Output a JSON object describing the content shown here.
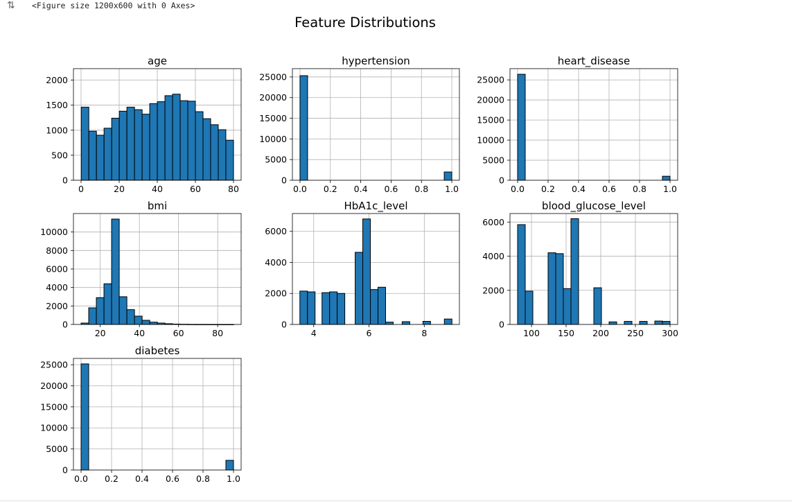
{
  "output": {
    "figure_text": "<Figure size 1200x600 with 0 Axes>",
    "collapse_icon": "output-collapse-icon"
  },
  "figure": {
    "title": "Feature Distributions"
  },
  "colors": {
    "bar_fill": "#1f77b4",
    "bar_edge": "#000000",
    "grid": "#b0b0b0",
    "text": "#000000"
  },
  "chart_data": [
    {
      "type": "bar",
      "title": "age",
      "xlim": [
        -4,
        84
      ],
      "ylim": [
        0,
        2230
      ],
      "xticks": [
        0,
        20,
        40,
        60,
        80
      ],
      "xtick_labels": [
        "0",
        "20",
        "40",
        "60",
        "80"
      ],
      "yticks": [
        0,
        500,
        1000,
        1500,
        2000
      ],
      "ytick_labels": [
        "0",
        "500",
        "1000",
        "1500",
        "2000"
      ],
      "grid": true,
      "bins": [
        {
          "x0": 0.08,
          "x1": 4.07,
          "y": 1460
        },
        {
          "x0": 4.07,
          "x1": 8.07,
          "y": 980
        },
        {
          "x0": 8.07,
          "x1": 12.06,
          "y": 900
        },
        {
          "x0": 12.06,
          "x1": 16.06,
          "y": 1040
        },
        {
          "x0": 16.06,
          "x1": 20.05,
          "y": 1240
        },
        {
          "x0": 20.05,
          "x1": 24.05,
          "y": 1380
        },
        {
          "x0": 24.05,
          "x1": 28.04,
          "y": 1460
        },
        {
          "x0": 28.04,
          "x1": 32.04,
          "y": 1410
        },
        {
          "x0": 32.04,
          "x1": 36.03,
          "y": 1320
        },
        {
          "x0": 36.03,
          "x1": 40.03,
          "y": 1530
        },
        {
          "x0": 40.03,
          "x1": 44.02,
          "y": 1570
        },
        {
          "x0": 44.02,
          "x1": 48.02,
          "y": 1690
        },
        {
          "x0": 48.02,
          "x1": 52.01,
          "y": 1720
        },
        {
          "x0": 52.01,
          "x1": 56.01,
          "y": 1590
        },
        {
          "x0": 56.01,
          "x1": 60.0,
          "y": 1580
        },
        {
          "x0": 60.0,
          "x1": 64.0,
          "y": 1370
        },
        {
          "x0": 64.0,
          "x1": 67.99,
          "y": 1230
        },
        {
          "x0": 67.99,
          "x1": 71.99,
          "y": 1110
        },
        {
          "x0": 71.99,
          "x1": 75.98,
          "y": 1010
        },
        {
          "x0": 75.98,
          "x1": 80.0,
          "y": 800
        },
        {
          "x0": 80.0,
          "x1": 84.0,
          "y": 0
        }
      ]
    },
    {
      "type": "bar",
      "title": "hypertension",
      "xlim": [
        -0.05,
        1.05
      ],
      "ylim": [
        0,
        27000
      ],
      "xticks": [
        0,
        0.2,
        0.4,
        0.6,
        0.8,
        1.0
      ],
      "xtick_labels": [
        "0.0",
        "0.2",
        "0.4",
        "0.6",
        "0.8",
        "1.0"
      ],
      "yticks": [
        0,
        5000,
        10000,
        15000,
        20000,
        25000
      ],
      "ytick_labels": [
        "0",
        "5000",
        "10000",
        "15000",
        "20000",
        "25000"
      ],
      "grid": true,
      "bins": [
        {
          "x0": 0.0,
          "x1": 0.05,
          "y": 25300
        },
        {
          "x0": 0.95,
          "x1": 1.0,
          "y": 2000
        }
      ]
    },
    {
      "type": "bar",
      "title": "heart_disease",
      "xlim": [
        -0.05,
        1.05
      ],
      "ylim": [
        0,
        27800
      ],
      "xticks": [
        0,
        0.2,
        0.4,
        0.6,
        0.8,
        1.0
      ],
      "xtick_labels": [
        "0.0",
        "0.2",
        "0.4",
        "0.6",
        "0.8",
        "1.0"
      ],
      "yticks": [
        0,
        5000,
        10000,
        15000,
        20000,
        25000
      ],
      "ytick_labels": [
        "0",
        "5000",
        "10000",
        "15000",
        "20000",
        "25000"
      ],
      "grid": true,
      "bins": [
        {
          "x0": 0.0,
          "x1": 0.05,
          "y": 26400
        },
        {
          "x0": 0.95,
          "x1": 1.0,
          "y": 1000
        }
      ]
    },
    {
      "type": "bar",
      "title": "bmi",
      "xlim": [
        6.3,
        92.0
      ],
      "ylim": [
        0,
        12000
      ],
      "xticks": [
        20,
        40,
        60,
        80
      ],
      "xtick_labels": [
        "20",
        "40",
        "60",
        "80"
      ],
      "yticks": [
        0,
        2000,
        4000,
        6000,
        8000,
        10000
      ],
      "ytick_labels": [
        "0",
        "2000",
        "4000",
        "6000",
        "8000",
        "10000"
      ],
      "grid": true,
      "bins": [
        {
          "x0": 10.2,
          "x1": 14.1,
          "y": 150
        },
        {
          "x0": 14.1,
          "x1": 18.0,
          "y": 1800
        },
        {
          "x0": 18.0,
          "x1": 21.9,
          "y": 2900
        },
        {
          "x0": 21.9,
          "x1": 25.8,
          "y": 4400
        },
        {
          "x0": 25.8,
          "x1": 29.7,
          "y": 11400
        },
        {
          "x0": 29.7,
          "x1": 33.6,
          "y": 3000
        },
        {
          "x0": 33.6,
          "x1": 37.5,
          "y": 1600
        },
        {
          "x0": 37.5,
          "x1": 41.4,
          "y": 900
        },
        {
          "x0": 41.4,
          "x1": 45.3,
          "y": 450
        },
        {
          "x0": 45.3,
          "x1": 49.2,
          "y": 250
        },
        {
          "x0": 49.2,
          "x1": 53.1,
          "y": 150
        },
        {
          "x0": 53.1,
          "x1": 57.0,
          "y": 80
        },
        {
          "x0": 57.0,
          "x1": 60.9,
          "y": 40
        },
        {
          "x0": 60.9,
          "x1": 64.8,
          "y": 20
        },
        {
          "x0": 64.8,
          "x1": 68.7,
          "y": 10
        },
        {
          "x0": 68.7,
          "x1": 72.6,
          "y": 5
        },
        {
          "x0": 72.6,
          "x1": 76.5,
          "y": 5
        },
        {
          "x0": 76.5,
          "x1": 80.4,
          "y": 3
        },
        {
          "x0": 80.4,
          "x1": 84.3,
          "y": 2
        },
        {
          "x0": 84.3,
          "x1": 88.2,
          "y": 2
        }
      ]
    },
    {
      "type": "bar",
      "title": "HbA1c_level",
      "xlim": [
        3.23,
        9.27
      ],
      "ylim": [
        0,
        7150
      ],
      "xticks": [
        4,
        6,
        8
      ],
      "xtick_labels": [
        "4",
        "6",
        "8"
      ],
      "yticks": [
        0,
        2000,
        4000,
        6000
      ],
      "ytick_labels": [
        "0",
        "2000",
        "4000",
        "6000"
      ],
      "grid": true,
      "bins": [
        {
          "x0": 3.5,
          "x1": 3.775,
          "y": 2150
        },
        {
          "x0": 3.775,
          "x1": 4.05,
          "y": 2100
        },
        {
          "x0": 4.3,
          "x1": 4.575,
          "y": 2050
        },
        {
          "x0": 4.575,
          "x1": 4.85,
          "y": 2100
        },
        {
          "x0": 4.85,
          "x1": 5.125,
          "y": 2000
        },
        {
          "x0": 5.5,
          "x1": 5.775,
          "y": 4650
        },
        {
          "x0": 5.775,
          "x1": 6.05,
          "y": 6800
        },
        {
          "x0": 6.05,
          "x1": 6.325,
          "y": 2250
        },
        {
          "x0": 6.325,
          "x1": 6.6,
          "y": 2400
        },
        {
          "x0": 6.6,
          "x1": 6.875,
          "y": 150
        },
        {
          "x0": 7.2,
          "x1": 7.475,
          "y": 180
        },
        {
          "x0": 7.95,
          "x1": 8.225,
          "y": 200
        },
        {
          "x0": 8.725,
          "x1": 9.0,
          "y": 350
        }
      ]
    },
    {
      "type": "bar",
      "title": "blood_glucose_level",
      "xlim": [
        69,
        311
      ],
      "ylim": [
        0,
        6500
      ],
      "xticks": [
        100,
        150,
        200,
        250,
        300
      ],
      "xtick_labels": [
        "100",
        "150",
        "200",
        "250",
        "300"
      ],
      "yticks": [
        0,
        2000,
        4000,
        6000
      ],
      "ytick_labels": [
        "0",
        "2000",
        "4000",
        "6000"
      ],
      "grid": true,
      "bins": [
        {
          "x0": 80,
          "x1": 91,
          "y": 5850
        },
        {
          "x0": 91,
          "x1": 102,
          "y": 1950
        },
        {
          "x0": 124,
          "x1": 135,
          "y": 4200
        },
        {
          "x0": 135,
          "x1": 146,
          "y": 4150
        },
        {
          "x0": 146,
          "x1": 157,
          "y": 2100
        },
        {
          "x0": 157,
          "x1": 168,
          "y": 6200
        },
        {
          "x0": 190,
          "x1": 201,
          "y": 2150
        },
        {
          "x0": 212,
          "x1": 223,
          "y": 150
        },
        {
          "x0": 234,
          "x1": 245,
          "y": 180
        },
        {
          "x0": 256,
          "x1": 267,
          "y": 180
        },
        {
          "x0": 278,
          "x1": 289,
          "y": 200
        },
        {
          "x0": 289,
          "x1": 300,
          "y": 180
        }
      ]
    },
    {
      "type": "bar",
      "title": "diabetes",
      "xlim": [
        -0.05,
        1.05
      ],
      "ylim": [
        0,
        26500
      ],
      "xticks": [
        0,
        0.2,
        0.4,
        0.6,
        0.8,
        1.0
      ],
      "xtick_labels": [
        "0.0",
        "0.2",
        "0.4",
        "0.6",
        "0.8",
        "1.0"
      ],
      "yticks": [
        0,
        5000,
        10000,
        15000,
        20000,
        25000
      ],
      "ytick_labels": [
        "0",
        "5000",
        "10000",
        "15000",
        "20000",
        "25000"
      ],
      "grid": true,
      "bins": [
        {
          "x0": 0.0,
          "x1": 0.05,
          "y": 25200
        },
        {
          "x0": 0.95,
          "x1": 1.0,
          "y": 2300
        }
      ]
    }
  ]
}
